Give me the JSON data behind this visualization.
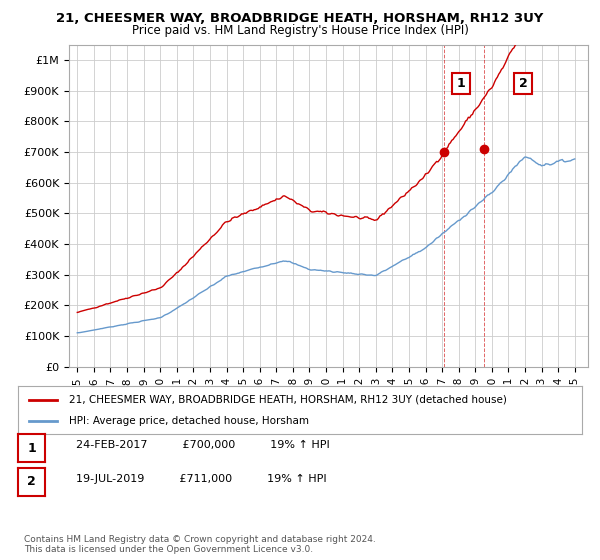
{
  "title": "21, CHEESMER WAY, BROADBRIDGE HEATH, HORSHAM, RH12 3UY",
  "subtitle": "Price paid vs. HM Land Registry's House Price Index (HPI)",
  "legend_label_red": "21, CHEESMER WAY, BROADBRIDGE HEATH, HORSHAM, RH12 3UY (detached house)",
  "legend_label_blue": "HPI: Average price, detached house, Horsham",
  "annotations": [
    {
      "num": "1",
      "date": "24-FEB-2017",
      "price": "£700,000",
      "hpi": "19% ↑ HPI",
      "x_year": 2017.12,
      "y_val": 700000
    },
    {
      "num": "2",
      "date": "19-JUL-2019",
      "price": "£711,000",
      "hpi": "19% ↑ HPI",
      "x_year": 2019.54,
      "y_val": 711000
    }
  ],
  "footnote": "Contains HM Land Registry data © Crown copyright and database right 2024.\nThis data is licensed under the Open Government Licence v3.0.",
  "ylim": [
    0,
    1050000
  ],
  "yticks": [
    0,
    100000,
    200000,
    300000,
    400000,
    500000,
    600000,
    700000,
    800000,
    900000,
    1000000
  ],
  "ytick_labels": [
    "£0",
    "£100K",
    "£200K",
    "£300K",
    "£400K",
    "£500K",
    "£600K",
    "£700K",
    "£800K",
    "£900K",
    "£1M"
  ],
  "color_red": "#cc0000",
  "color_blue": "#6699cc",
  "background_color": "#ffffff",
  "grid_color": "#cccccc",
  "xlim_min": 1994.5,
  "xlim_max": 2025.8
}
